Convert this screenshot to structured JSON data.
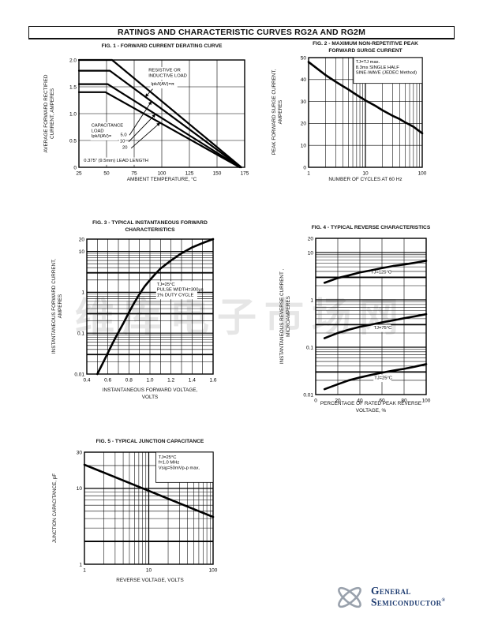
{
  "banner": {
    "title": "RATINGS AND CHARACTERISTIC CURVES RG2A AND RG2M"
  },
  "watermark": {
    "text": "维库电子市场网"
  },
  "logo": {
    "name_line1": "General",
    "name_line2": "Semiconductor",
    "registered": "®"
  },
  "chart_data": [
    {
      "id": "fig1",
      "type": "line",
      "title_lines": [
        "FIG. 1 - FORWARD CURRENT DERATING CURVE"
      ],
      "xlabel_lines": [
        "AMBIENT TEMPERATURE, °C"
      ],
      "ylabel_lines": [
        "AVERAGE FORWARD RECTIFIED",
        "CURRENT, AMPERES"
      ],
      "x": {
        "type": "linear",
        "min": 25,
        "max": 175,
        "grid_step": 25,
        "ticks": [
          25,
          50,
          75,
          100,
          125,
          150,
          175
        ],
        "tick_labels": [
          "25",
          "50",
          "75",
          "100",
          "125",
          "150",
          "175"
        ]
      },
      "y": {
        "type": "linear",
        "min": 0,
        "max": 2,
        "grid_step": 0.5,
        "ticks": [
          0,
          0.5,
          1,
          1.5,
          2
        ],
        "tick_labels": [
          "0",
          "0.5",
          "1.0",
          "1.5",
          "2.0"
        ]
      },
      "series": [
        {
          "name": "resistive or inductive load Ipk/I(AV)=π",
          "points": [
            [
              25,
              2
            ],
            [
              55,
              2
            ],
            [
              172,
              0
            ]
          ]
        },
        {
          "name": "capacitance load Ipk/I(AV)=5.0",
          "points": [
            [
              25,
              1.8
            ],
            [
              53,
              1.8
            ],
            [
              171.5,
              0
            ]
          ]
        },
        {
          "name": "capacitance load Ipk/I(AV)=10",
          "points": [
            [
              25,
              1.55
            ],
            [
              51,
              1.55
            ],
            [
              171,
              0
            ]
          ]
        },
        {
          "name": "capacitance load Ipk/I(AV)=20",
          "points": [
            [
              25,
              1.4
            ],
            [
              49,
              1.4
            ],
            [
              170.5,
              0
            ]
          ]
        }
      ],
      "annotations": [
        {
          "lines": [
            "RESISTIVE OR",
            "INDUCTIVE LOAD"
          ],
          "fx": 0.42,
          "fy": 0.07
        },
        {
          "lines": [
            "Ipk/I(AV)=π"
          ],
          "fx": 0.435,
          "fy": 0.2
        },
        {
          "lines": [
            "CAPACITANCE",
            "LOAD",
            "Ipk/I(AV)="
          ],
          "fx": 0.075,
          "fy": 0.585
        },
        {
          "lines": [
            "5.0"
          ],
          "fx": 0.25,
          "fy": 0.672
        },
        {
          "lines": [
            "10"
          ],
          "fx": 0.247,
          "fy": 0.732
        },
        {
          "lines": [
            "20"
          ],
          "fx": 0.262,
          "fy": 0.792
        },
        {
          "lines": [
            "0.375\" (9.5mm) LEAD LENGTH"
          ],
          "fx": 0.03,
          "fy": 0.912
        }
      ],
      "arrows": [
        {
          "from": [
            0.445,
            0.27
          ],
          "to": [
            0.4,
            0.345
          ]
        },
        {
          "from": [
            0.305,
            0.7
          ],
          "to": [
            0.438,
            0.385
          ]
        },
        {
          "from": [
            0.3,
            0.762
          ],
          "to": [
            0.462,
            0.505
          ]
        },
        {
          "from": [
            0.315,
            0.822
          ],
          "to": [
            0.49,
            0.585
          ]
        }
      ]
    },
    {
      "id": "fig2",
      "type": "line",
      "title_lines": [
        "FIG. 2 - MAXIMUM NON-REPETITIVE PEAK",
        "FORWARD SURGE CURRENT"
      ],
      "xlabel_lines": [
        "NUMBER OF CYCLES AT 60 Hz"
      ],
      "ylabel_lines": [
        "PEAK FORWARD SURGE CURRENT,",
        "AMPERES"
      ],
      "x": {
        "type": "log",
        "min": 1,
        "max": 100,
        "ticks": [
          1,
          10,
          100
        ],
        "tick_labels": [
          "1",
          "10",
          "100"
        ]
      },
      "y": {
        "type": "linear",
        "min": 0,
        "max": 50,
        "grid_step": 10,
        "ticks": [
          0,
          10,
          20,
          30,
          40,
          50
        ],
        "tick_labels": [
          "0",
          "10",
          "20",
          "30",
          "40",
          "50"
        ]
      },
      "series": [
        {
          "name": "peak forward surge current",
          "points": [
            [
              1,
              48
            ],
            [
              1.5,
              44.5
            ],
            [
              2,
              42
            ],
            [
              3,
              39
            ],
            [
              4,
              37
            ],
            [
              5,
              35.5
            ],
            [
              7,
              33
            ],
            [
              10,
              30.5
            ],
            [
              15,
              28
            ],
            [
              20,
              26
            ],
            [
              30,
              23.5
            ],
            [
              40,
              22
            ],
            [
              50,
              20.5
            ],
            [
              70,
              18.5
            ],
            [
              100,
              15.5
            ]
          ]
        }
      ],
      "annotations": [
        {
          "lines": [
            "TJ=TJ max.",
            "8.3ms SINGLE HALF",
            "SINE-WAVE (JEDEC Method)"
          ],
          "fx": 0.415,
          "fy": 0.015,
          "box": [
            0.395,
            0,
            1,
            0.235
          ]
        }
      ]
    },
    {
      "id": "fig3",
      "type": "line",
      "title_lines": [
        "FIG. 3 - TYPICAL INSTANTANEOUS FORWARD",
        "CHARACTERISTICS"
      ],
      "xlabel_lines": [
        "INSTANTANEOUS FORWARD VOLTAGE,",
        "VOLTS"
      ],
      "ylabel_lines": [
        "INSTANTANEOUS FORWARD CURRENT,",
        "AMPERES"
      ],
      "x": {
        "type": "linear",
        "min": 0.4,
        "max": 1.6,
        "grid_step": 0.1,
        "ticks": [
          0.4,
          0.6,
          0.8,
          1,
          1.2,
          1.4,
          1.6
        ],
        "tick_labels": [
          "0.4",
          "0.6",
          "0.8",
          "1.0",
          "1.2",
          "1.4",
          "1.6"
        ]
      },
      "y": {
        "type": "log",
        "min": 0.01,
        "max": 20,
        "heavy": [
          0.03,
          0.3,
          3
        ],
        "ticks": [
          0.01,
          0.1,
          1,
          10,
          20
        ],
        "tick_labels": [
          "0.01",
          "0.1",
          "1",
          "10",
          "20"
        ]
      },
      "series": [
        {
          "name": "instantaneous forward current",
          "points": [
            [
              0.5,
              0.01
            ],
            [
              0.55,
              0.018
            ],
            [
              0.6,
              0.033
            ],
            [
              0.65,
              0.06
            ],
            [
              0.7,
              0.105
            ],
            [
              0.75,
              0.18
            ],
            [
              0.8,
              0.32
            ],
            [
              0.85,
              0.55
            ],
            [
              0.9,
              0.9
            ],
            [
              0.95,
              1.4
            ],
            [
              1.0,
              2.0
            ],
            [
              1.05,
              2.8
            ],
            [
              1.1,
              3.8
            ],
            [
              1.2,
              6.0
            ],
            [
              1.3,
              9.0
            ],
            [
              1.4,
              12.5
            ],
            [
              1.5,
              16
            ],
            [
              1.6,
              20
            ]
          ]
        }
      ],
      "annotations": [
        {
          "lines": [
            "TJ=25°C",
            "PULSE WIDTH=300μs",
            "1% DUTY CYCLE"
          ],
          "fx": 0.555,
          "fy": 0.315
        }
      ]
    },
    {
      "id": "fig4",
      "type": "line",
      "title_lines": [
        "FIG. 4 - TYPICAL REVERSE CHARACTERISTICS"
      ],
      "xlabel_lines": [
        "PERCENTAGE OF RATED PEAK REVERSE",
        "VOLTAGE, %"
      ],
      "ylabel_lines": [
        "INSTANTANEOUS REVERSE CURRENT ,",
        "MICROAMPERES"
      ],
      "x": {
        "type": "linear",
        "min": 0,
        "max": 100,
        "grid_step": 20,
        "ticks": [
          0,
          20,
          40,
          60,
          80,
          100
        ],
        "tick_labels": [
          "0",
          "20",
          "40",
          "60",
          "80",
          "100"
        ]
      },
      "y": {
        "type": "log",
        "min": 0.01,
        "max": 20,
        "heavy": [
          0.03,
          0.3,
          3
        ],
        "ticks": [
          0.01,
          0.1,
          1,
          10,
          20
        ],
        "tick_labels": [
          "0.01",
          "0.1",
          "1",
          "10",
          "20"
        ]
      },
      "series": [
        {
          "name": "TJ=125°C",
          "points": [
            [
              8,
              2.3
            ],
            [
              20,
              2.9
            ],
            [
              30,
              3.3
            ],
            [
              40,
              3.8
            ],
            [
              50,
              4.2
            ],
            [
              60,
              4.7
            ],
            [
              70,
              5.2
            ],
            [
              80,
              5.6
            ],
            [
              90,
              6.1
            ],
            [
              100,
              6.7
            ]
          ]
        },
        {
          "name": "TJ=75°C",
          "points": [
            [
              8,
              0.155
            ],
            [
              20,
              0.2
            ],
            [
              30,
              0.235
            ],
            [
              40,
              0.27
            ],
            [
              50,
              0.3
            ],
            [
              60,
              0.335
            ],
            [
              70,
              0.37
            ],
            [
              80,
              0.41
            ],
            [
              90,
              0.45
            ],
            [
              100,
              0.5
            ]
          ]
        },
        {
          "name": "TJ=25°C",
          "points": [
            [
              8,
              0.013
            ],
            [
              20,
              0.0165
            ],
            [
              30,
              0.02
            ],
            [
              40,
              0.023
            ],
            [
              50,
              0.026
            ],
            [
              60,
              0.029
            ],
            [
              70,
              0.032
            ],
            [
              80,
              0.035
            ],
            [
              90,
              0.039
            ],
            [
              100,
              0.044
            ]
          ]
        }
      ],
      "annotations": [
        {
          "lines": [
            "TJ=125°C"
          ],
          "fx": 0.5,
          "fy": 0.2
        },
        {
          "lines": [
            "TJ=75°C"
          ],
          "fx": 0.525,
          "fy": 0.555
        },
        {
          "lines": [
            "TJ=25°C"
          ],
          "fx": 0.53,
          "fy": 0.875
        }
      ]
    },
    {
      "id": "fig5",
      "type": "line",
      "title_lines": [
        "FIG. 5 - TYPICAL JUNCTION CAPACITANCE"
      ],
      "xlabel_lines": [
        "REVERSE VOLTAGE, VOLTS"
      ],
      "ylabel_lines": [
        "JUNCTION CAPACITANCE, pF"
      ],
      "x": {
        "type": "log",
        "min": 1,
        "max": 100,
        "ticks": [
          1,
          10,
          100
        ],
        "tick_labels": [
          "1",
          "10",
          "100"
        ]
      },
      "y": {
        "type": "log",
        "min": 1,
        "max": 30,
        "heavy": [
          2
        ],
        "ticks": [
          1,
          10,
          30
        ],
        "tick_labels": [
          "1",
          "10",
          "30"
        ]
      },
      "series": [
        {
          "name": "junction capacitance",
          "points": [
            [
              1,
              20.5
            ],
            [
              100,
              4.2
            ]
          ]
        }
      ],
      "annotations": [
        {
          "lines": [
            "TJ=25°C",
            "f=1.0 MHz",
            "Vsig=50mVp-p max."
          ],
          "fx": 0.575,
          "fy": 0.02,
          "box": [
            0.555,
            0,
            1,
            0.27
          ]
        }
      ]
    }
  ]
}
